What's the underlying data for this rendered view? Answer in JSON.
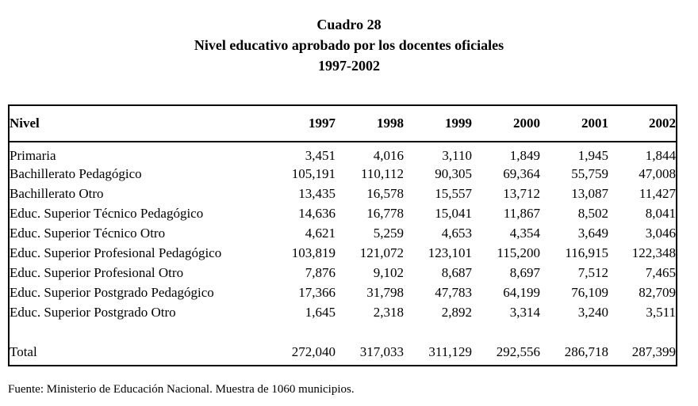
{
  "title": {
    "line1": "Cuadro 28",
    "line2": "Nivel educativo aprobado por los docentes oficiales",
    "line3": "1997-2002"
  },
  "table": {
    "header": [
      "Nivel",
      "1997",
      "1998",
      "1999",
      "2000",
      "2001",
      "2002"
    ],
    "rows": [
      {
        "label": "Primaria",
        "values": [
          "3,451",
          "4,016",
          "3,110",
          "1,849",
          "1,945",
          "1,844"
        ]
      },
      {
        "label": "Bachillerato Pedagógico",
        "values": [
          "105,191",
          "110,112",
          "90,305",
          "69,364",
          "55,759",
          "47,008"
        ]
      },
      {
        "label": "Bachillerato Otro",
        "values": [
          "13,435",
          "16,578",
          "15,557",
          "13,712",
          "13,087",
          "11,427"
        ]
      },
      {
        "label": "Educ. Superior Técnico Pedagógico",
        "values": [
          "14,636",
          "16,778",
          "15,041",
          "11,867",
          "8,502",
          "8,041"
        ]
      },
      {
        "label": "Educ. Superior Técnico Otro",
        "values": [
          "4,621",
          "5,259",
          "4,653",
          "4,354",
          "3,649",
          "3,046"
        ]
      },
      {
        "label": "Educ. Superior Profesional Pedagógico",
        "values": [
          "103,819",
          "121,072",
          "123,101",
          "115,200",
          "116,915",
          "122,348"
        ]
      },
      {
        "label": "Educ. Superior Profesional Otro",
        "values": [
          "7,876",
          "9,102",
          "8,687",
          "8,697",
          "7,512",
          "7,465"
        ]
      },
      {
        "label": "Educ. Superior Postgrado Pedagógico",
        "values": [
          "17,366",
          "31,798",
          "47,783",
          "64,199",
          "76,109",
          "82,709"
        ]
      },
      {
        "label": "Educ. Superior Postgrado Otro",
        "values": [
          "1,645",
          "2,318",
          "2,892",
          "3,314",
          "3,240",
          "3,511"
        ]
      }
    ],
    "total": {
      "label": "Total",
      "values": [
        "272,040",
        "317,033",
        "311,129",
        "292,556",
        "286,718",
        "287,399"
      ]
    }
  },
  "footer": "Fuente: Ministerio de Educación Nacional. Muestra de 1060 municipios."
}
